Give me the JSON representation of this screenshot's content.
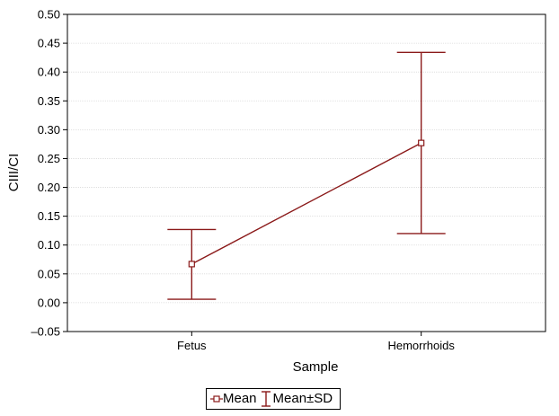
{
  "chart_data": {
    "type": "line",
    "categories": [
      "Fetus",
      "Hemorrhoids"
    ],
    "series": [
      {
        "name": "Mean",
        "values": [
          0.067,
          0.277
        ],
        "sd_lower": [
          0.006,
          0.12
        ],
        "sd_upper": [
          0.127,
          0.434
        ]
      }
    ],
    "ylabel": "CIII/CI",
    "xlabel": "Sample",
    "ylim": [
      -0.05,
      0.5
    ],
    "yticks": [
      "-0.05",
      "0.00",
      "0.05",
      "0.10",
      "0.15",
      "0.20",
      "0.25",
      "0.30",
      "0.35",
      "0.40",
      "0.45",
      "0.50"
    ],
    "grid": true,
    "legend": {
      "position": "bottom",
      "entries": [
        "Mean",
        "Mean±SD"
      ]
    },
    "color": "#8b1a1a"
  }
}
